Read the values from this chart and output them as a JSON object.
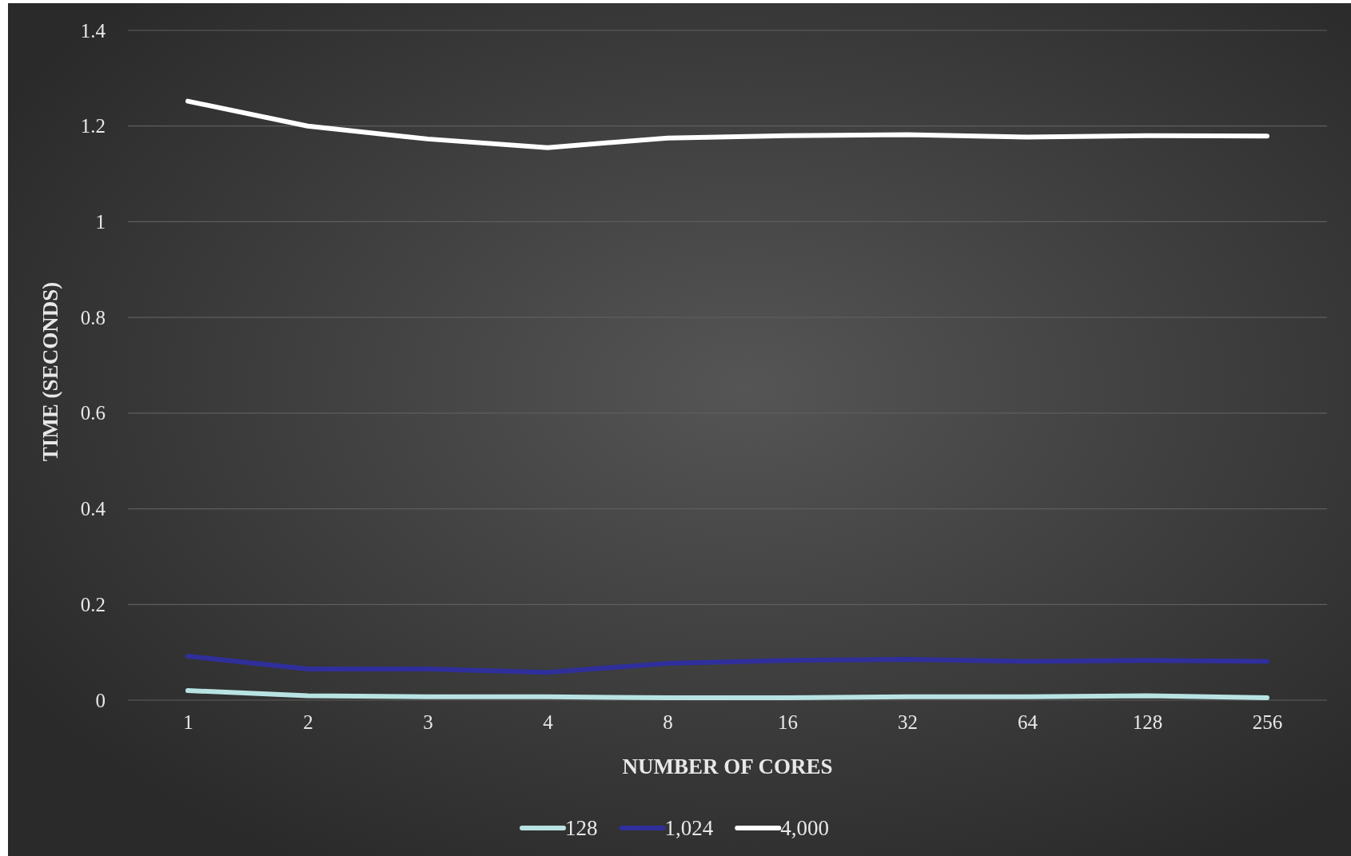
{
  "chart_data": {
    "type": "line",
    "xlabel": "NUMBER OF CORES",
    "ylabel": "TIME (SECONDS)",
    "categories": [
      "1",
      "2",
      "3",
      "4",
      "8",
      "16",
      "32",
      "64",
      "128",
      "256"
    ],
    "series": [
      {
        "name": "128",
        "color": "#b9e3e3",
        "values": [
          0.02,
          0.009,
          0.007,
          0.007,
          0.005,
          0.005,
          0.007,
          0.007,
          0.009,
          0.005
        ]
      },
      {
        "name": "1,024",
        "color": "#2f2f9c",
        "values": [
          0.092,
          0.065,
          0.065,
          0.058,
          0.077,
          0.083,
          0.085,
          0.081,
          0.083,
          0.081
        ]
      },
      {
        "name": "4,000",
        "color": "#ffffff",
        "values": [
          1.252,
          1.2,
          1.173,
          1.155,
          1.175,
          1.18,
          1.182,
          1.177,
          1.18,
          1.179
        ]
      }
    ],
    "ylim": [
      0,
      1.4
    ],
    "yticks": [
      0,
      0.2,
      0.4,
      0.6,
      0.8,
      1,
      1.2,
      1.4
    ],
    "grid": "y",
    "legend": "bottom",
    "marker": "none",
    "line_style": "solid"
  }
}
